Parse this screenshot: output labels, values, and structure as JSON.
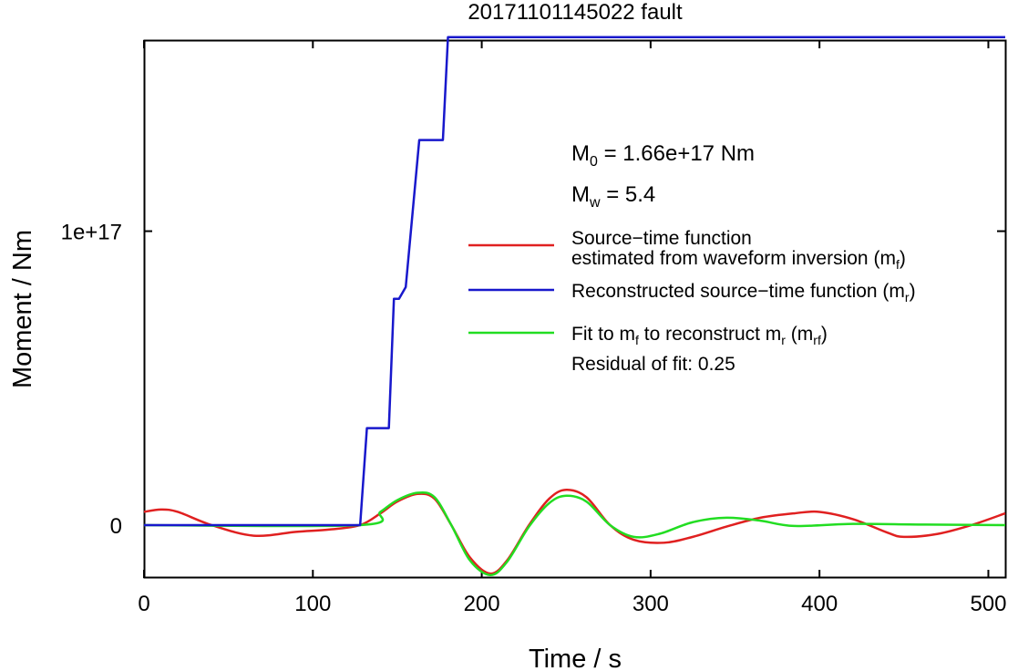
{
  "chart_data": {
    "type": "line",
    "title": "20171101145022 fault",
    "xlabel": "Time / s",
    "ylabel": "Moment / Nm",
    "xlim": [
      0,
      510
    ],
    "ylim": [
      -1.8e+16,
      1.65e+17
    ],
    "xticks": [
      0,
      100,
      200,
      300,
      400,
      500
    ],
    "xtick_labels": [
      "0",
      "100",
      "200",
      "300",
      "400",
      "500"
    ],
    "yticks": [
      0,
      1e+17
    ],
    "ytick_labels": [
      "0",
      "1e+17"
    ],
    "annotations": {
      "m0": {
        "sym": "M",
        "sub": "0",
        "text": " = 1.66e+17 Nm"
      },
      "mw": {
        "sym": "M",
        "sub": "w",
        "text": " = 5.4"
      },
      "residual": "Residual of fit: 0.25"
    },
    "legend": {
      "position": "right",
      "red": {
        "line1": "Source−time function",
        "line2": "estimated from waveform inversion (m",
        "sub": "f",
        "close": ")"
      },
      "blue": {
        "text": "Reconstructed source−time function (m",
        "sub": "r",
        "close": ")"
      },
      "green": {
        "pre": "Fit to m",
        "sub1": "f",
        "mid": " to reconstruct m",
        "sub2": "r",
        "mid2": " (m",
        "sub3": "rf",
        "close": ")"
      }
    },
    "series": [
      {
        "name": "Source−time function estimated from waveform inversion (mf)",
        "color": "#e02020",
        "x": [
          0,
          10,
          20,
          40,
          65,
          90,
          110,
          128,
          140,
          150,
          162,
          172,
          182,
          193,
          205,
          215,
          228,
          240,
          250,
          262,
          276,
          290,
          308,
          325,
          345,
          365,
          385,
          400,
          420,
          440,
          450,
          470,
          490,
          510
        ],
        "y": [
          4500000000000000.0,
          5300000000000000.0,
          4500000000000000.0,
          0.0,
          -3600000000000000.0,
          -2300000000000000.0,
          -1500000000000000.0,
          0.0,
          4000000000000000.0,
          8000000000000000.0,
          1.06e+16,
          9000000000000000.0,
          0.0,
          -1.1e+16,
          -1.65e+16,
          -1.2e+16,
          0.0,
          9000000000000000.0,
          1.2e+16,
          9500000000000000.0,
          0.0,
          -5000000000000000.0,
          -6000000000000000.0,
          -4000000000000000.0,
          -500000000000000.0,
          2500000000000000.0,
          4000000000000000.0,
          4500000000000000.0,
          2000000000000000.0,
          -2500000000000000.0,
          -4000000000000000.0,
          -3000000000000000.0,
          0.0,
          4000000000000000.0
        ]
      },
      {
        "name": "Reconstructed source−time function (mr)",
        "color": "#1818cc",
        "x": [
          0,
          128,
          132,
          145,
          148,
          151,
          155,
          163,
          177,
          180,
          510
        ],
        "y": [
          0,
          0,
          3.3e+16,
          3.3e+16,
          7.7e+16,
          7.7e+16,
          8.1e+16,
          1.31e+17,
          1.31e+17,
          1.66e+17,
          1.66e+17
        ]
      },
      {
        "name": "Fit to mf to reconstruct mr (mrf)",
        "color": "#22dd22",
        "x": [
          0,
          128,
          140,
          150,
          162,
          172,
          182,
          193,
          205,
          215,
          228,
          240,
          250,
          262,
          276,
          290,
          305,
          325,
          345,
          365,
          385,
          420,
          460,
          510
        ],
        "y": [
          0,
          0,
          4500000000000000.0,
          8500000000000000.0,
          1.1e+16,
          9500000000000000.0,
          0.0,
          -1.2e+16,
          -1.7e+16,
          -1.25e+16,
          -500000000000000.0,
          7500000000000000.0,
          1e+16,
          8000000000000000.0,
          0.0,
          -4000000000000000.0,
          -3000000000000000.0,
          1000000000000000.0,
          2500000000000000.0,
          1500000000000000.0,
          -300000000000000.0,
          400000000000000.0,
          200000000000000.0,
          0.0
        ]
      }
    ]
  }
}
